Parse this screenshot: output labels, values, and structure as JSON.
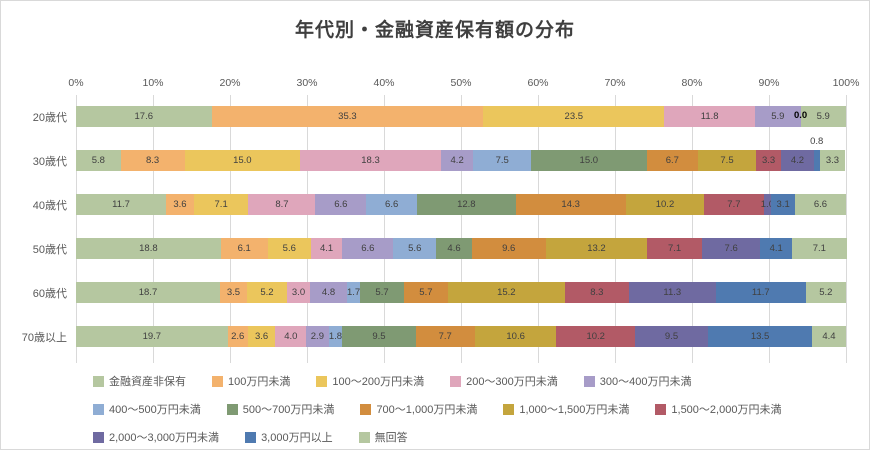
{
  "title": "年代別・金融資産保有額の分布",
  "chart_data": {
    "type": "bar",
    "subtype": "horizontal-stacked-100",
    "title": "年代別・金融資産保有額の分布",
    "categories": [
      "20歳代",
      "30歳代",
      "40歳代",
      "50歳代",
      "60歳代",
      "70歳以上"
    ],
    "x_ticks": [
      "0%",
      "10%",
      "20%",
      "30%",
      "40%",
      "50%",
      "60%",
      "70%",
      "80%",
      "90%",
      "100%"
    ],
    "xlim": [
      0,
      100
    ],
    "unit": "%",
    "grid": true,
    "legend_position": "bottom",
    "series": [
      {
        "name": "金融資産非保有",
        "color": "#b5c7a0",
        "values": [
          17.6,
          5.8,
          11.7,
          18.8,
          18.7,
          19.7
        ]
      },
      {
        "name": "100万円未満",
        "color": "#f3b26d",
        "values": [
          35.3,
          8.3,
          3.6,
          6.1,
          3.5,
          2.6
        ]
      },
      {
        "name": "100〜200万円未満",
        "color": "#ebc65c",
        "values": [
          23.5,
          15.0,
          7.1,
          5.6,
          5.2,
          3.6
        ]
      },
      {
        "name": "200〜300万円未満",
        "color": "#dfa6bb",
        "values": [
          11.8,
          18.3,
          8.7,
          4.1,
          3.0,
          4.0
        ]
      },
      {
        "name": "300〜400万円未満",
        "color": "#a79cc8",
        "values": [
          5.9,
          4.2,
          6.6,
          6.6,
          4.8,
          2.9
        ]
      },
      {
        "name": "400〜500万円未満",
        "color": "#8fadd4",
        "values": [
          0.0,
          7.5,
          6.6,
          5.6,
          1.7,
          1.8
        ]
      },
      {
        "name": "500〜700万円未満",
        "color": "#7f9a73",
        "values": [
          0.0,
          15.0,
          12.8,
          4.6,
          5.7,
          9.5
        ]
      },
      {
        "name": "700〜1,000万円未満",
        "color": "#d28d3e",
        "values": [
          0.0,
          6.7,
          14.3,
          9.6,
          5.7,
          7.7
        ]
      },
      {
        "name": "1,000〜1,500万円未満",
        "color": "#c4a53d",
        "values": [
          0.0,
          7.5,
          10.2,
          13.2,
          15.2,
          10.6
        ]
      },
      {
        "name": "1,500〜2,000万円未満",
        "color": "#b25a66",
        "values": [
          0.0,
          3.3,
          7.7,
          7.1,
          8.3,
          10.2
        ]
      },
      {
        "name": "2,000〜3,000万円未満",
        "color": "#6f6aa1",
        "values": [
          0.0,
          4.2,
          1.0,
          7.6,
          11.3,
          9.5
        ]
      },
      {
        "name": "3,000万円以上",
        "color": "#4f7ab0",
        "values": [
          0.0,
          0.8,
          3.1,
          4.1,
          11.7,
          13.5
        ]
      },
      {
        "name": "無回答",
        "color": "#b5c7a0",
        "values": [
          5.9,
          3.3,
          6.6,
          7.1,
          5.2,
          4.4
        ]
      }
    ],
    "annotations": [
      {
        "row": 0,
        "x": 94.1,
        "text": "0.0",
        "bold": true,
        "placement": "inside"
      },
      {
        "row": 1,
        "x": 96.2,
        "text": "0.8",
        "bold": false,
        "placement": "above"
      }
    ],
    "legend_rows": [
      5,
      5,
      3
    ],
    "label_min_value": 1.0,
    "colors_meta": {
      "gridline": "#d9d9d9",
      "axis_text": "#595959",
      "bar_label_text": "#404040",
      "title_text": "#3f3f3f"
    }
  }
}
